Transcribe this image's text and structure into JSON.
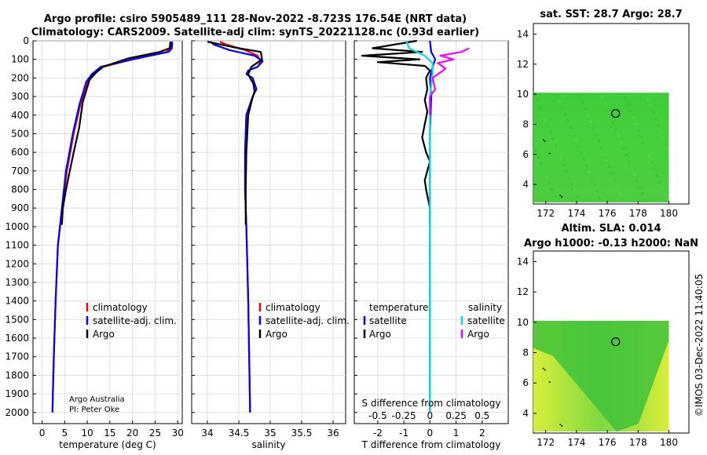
{
  "header": {
    "title_line1": "Argo profile: csiro 5905489_111 28-Nov-2022 -8.723S 176.54E (NRT data)",
    "title_line2": "Climatology: CARS2009. Satellite-adj clim: synTS_20221128.nc (0.93d earlier)"
  },
  "footer": {
    "credit_line1": "Argo Australia",
    "credit_line2": "PI: Peter Oke",
    "timestamp": "©IMOS 03-Dec-2022 11:40:05"
  },
  "colors": {
    "argo": "#000000",
    "climatology": "#ff0000",
    "satellite": "#0000ff",
    "sat_salinity": "#00e0e0",
    "argo_salinity": "#ff00ff"
  },
  "chart_data": [
    {
      "type": "line",
      "name": "temperature-profile",
      "xlabel": "temperature (deg C)",
      "ylabel": "",
      "xlim": [
        -2,
        31
      ],
      "ylim": [
        2060,
        0
      ],
      "xticks": [
        "0",
        "5",
        "10",
        "15",
        "20",
        "25",
        "30"
      ],
      "yticks": [
        "0",
        "100",
        "200",
        "300",
        "400",
        "500",
        "600",
        "700",
        "800",
        "900",
        "1000",
        "1100",
        "1200",
        "1300",
        "1400",
        "1500",
        "1600",
        "1700",
        "1800",
        "1900",
        "2000"
      ],
      "legend": [
        "climatology",
        "satellite-adj. clim.",
        "Argo"
      ],
      "series": [
        {
          "name": "climatology",
          "color": "#ff0000",
          "x": [
            28.6,
            28.5,
            27.5,
            20,
            13.5,
            11.5,
            10,
            8.5,
            7,
            5.5,
            4.5,
            3.5,
            3.0,
            2.6,
            2.4,
            2.3
          ],
          "y": [
            5,
            40,
            60,
            100,
            140,
            170,
            220,
            340,
            500,
            700,
            900,
            1100,
            1400,
            1700,
            1900,
            2000
          ]
        },
        {
          "name": "satellite-adj. clim.",
          "color": "#0000ff",
          "x": [
            28.8,
            28.7,
            28,
            20,
            13,
            11,
            9.8,
            8.3,
            6.8,
            5.3,
            4.4,
            3.5,
            3.0,
            2.6,
            2.4,
            2.3
          ],
          "y": [
            5,
            40,
            60,
            100,
            140,
            180,
            220,
            340,
            500,
            700,
            900,
            1100,
            1400,
            1700,
            1900,
            2000
          ]
        },
        {
          "name": "Argo",
          "color": "#000000",
          "x": [
            28.4,
            28.2,
            26,
            24,
            19,
            13.5,
            12,
            10.5,
            9,
            8.2,
            7,
            5.3,
            4.6,
            4.4
          ],
          "y": [
            5,
            40,
            60,
            70,
            95,
            140,
            170,
            210,
            330,
            470,
            600,
            800,
            900,
            990
          ]
        }
      ]
    },
    {
      "type": "line",
      "name": "salinity-profile",
      "xlabel": "salinity",
      "ylabel": "",
      "xlim": [
        33.75,
        36.2
      ],
      "ylim": [
        2060,
        0
      ],
      "xticks": [
        "34",
        "34.5",
        "35",
        "35.5",
        "36"
      ],
      "legend": [
        "climatology",
        "satellite-adj. clim.",
        "Argo"
      ],
      "series": [
        {
          "name": "climatology",
          "color": "#ff0000",
          "x": [
            34.2,
            34.3,
            34.6,
            34.8,
            34.85,
            34.8,
            34.65,
            34.63,
            34.72,
            34.78,
            34.72,
            34.62,
            34.6,
            34.6,
            34.62,
            34.65,
            34.67,
            34.68
          ],
          "y": [
            5,
            20,
            50,
            80,
            110,
            140,
            160,
            180,
            200,
            260,
            300,
            400,
            600,
            800,
            1000,
            1400,
            1800,
            2000
          ]
        },
        {
          "name": "satellite-adj. clim.",
          "color": "#0000ff",
          "x": [
            34.05,
            34.1,
            34.35,
            34.75,
            34.88,
            34.8,
            34.65,
            34.62,
            34.72,
            34.78,
            34.72,
            34.62,
            34.6,
            34.6,
            34.62,
            34.65,
            34.67,
            34.68
          ],
          "y": [
            5,
            20,
            50,
            80,
            110,
            140,
            160,
            180,
            200,
            260,
            300,
            400,
            600,
            800,
            1000,
            1400,
            1800,
            2000
          ]
        },
        {
          "name": "Argo",
          "color": "#000000",
          "x": [
            34.0,
            34.5,
            34.85,
            34.87,
            34.7,
            34.65,
            34.68,
            34.73,
            34.75,
            34.7,
            34.65,
            34.62,
            34.61,
            34.61
          ],
          "y": [
            5,
            40,
            60,
            100,
            140,
            180,
            200,
            230,
            270,
            330,
            400,
            600,
            800,
            990
          ]
        }
      ]
    },
    {
      "type": "line",
      "name": "difference-profile",
      "xlabel": "T difference from climatology",
      "xlabel_top": "S difference from climatology",
      "xlim": [
        -2.9,
        3.0
      ],
      "ylim": [
        2060,
        0
      ],
      "xticks": [
        "-2",
        "-1",
        "0",
        "1",
        "2"
      ],
      "xticks_top": [
        "-0.5",
        "-0.25",
        "0",
        "0.25",
        "0.5"
      ],
      "legend_titles": [
        "temperature",
        "salinity"
      ],
      "legend": [
        "satellite",
        "Argo",
        "satellite",
        "Argo"
      ],
      "series": [
        {
          "name": "temperature satellite",
          "color": "#0000ff",
          "x": [
            0,
            0.05,
            0.2,
            0.1,
            0,
            0.05,
            0,
            0,
            0,
            0
          ],
          "y": [
            0,
            60,
            100,
            140,
            200,
            300,
            500,
            1000,
            1500,
            2000
          ]
        },
        {
          "name": "temperature Argo",
          "color": "#000000",
          "x": [
            -0.5,
            -2.2,
            -0.3,
            -2.6,
            -0.4,
            -2.0,
            -0.2,
            0.0,
            -0.15,
            -0.1,
            -0.2,
            -0.1,
            -0.2,
            -0.3,
            -0.15,
            0.0,
            -0.1,
            -0.2,
            -0.15,
            0.0,
            0.0
          ],
          "y": [
            0,
            40,
            60,
            80,
            100,
            115,
            135,
            160,
            200,
            260,
            320,
            380,
            450,
            520,
            600,
            650,
            700,
            750,
            800,
            900,
            990
          ]
        },
        {
          "name": "salinity satellite",
          "color": "#00e0e0",
          "x": [
            -0.9,
            -0.8,
            -0.2,
            0.1,
            0.1,
            0.0,
            0.0,
            0.0,
            0.0,
            0.0,
            0.0,
            0.0
          ],
          "y": [
            0,
            40,
            80,
            120,
            180,
            300,
            600,
            900,
            1200,
            1500,
            1800,
            2000
          ]
        },
        {
          "name": "salinity Argo",
          "color": "#ff00ff",
          "x": [
            1.5,
            1.2,
            0.4,
            0.9,
            0.3,
            0.6,
            0.1,
            0.2,
            0.0,
            0.0
          ],
          "y": [
            40,
            60,
            80,
            100,
            120,
            150,
            200,
            260,
            300,
            400
          ]
        }
      ]
    },
    {
      "type": "heatmap",
      "name": "sat-sst-map",
      "title": "sat. SST: 28.7 Argo: 28.7",
      "xlim": [
        171.2,
        181.3
      ],
      "ylim": [
        2.7,
        14.7
      ],
      "xticks": [
        "172",
        "174",
        "176",
        "178",
        "180"
      ],
      "yticks": [
        "4",
        "6",
        "8",
        "10",
        "12",
        "14"
      ],
      "data_extent": {
        "lon": [
          171.2,
          180
        ],
        "lat": [
          2.8,
          10.1
        ]
      },
      "marker": {
        "lon": 176.54,
        "lat": 8.72
      }
    },
    {
      "type": "heatmap",
      "name": "altim-sla-map",
      "title_line1": "Altim. SLA: 0.014",
      "title_line2": "Argo h1000: -0.13 h2000: NaN",
      "xlim": [
        171.2,
        181.3
      ],
      "ylim": [
        2.7,
        14.7
      ],
      "xticks": [
        "172",
        "174",
        "176",
        "178",
        "180"
      ],
      "yticks": [
        "4",
        "6",
        "8",
        "10",
        "12",
        "14"
      ],
      "data_extent": {
        "lon": [
          171.2,
          180
        ],
        "lat": [
          2.8,
          10.1
        ]
      },
      "marker": {
        "lon": 176.54,
        "lat": 8.72
      }
    }
  ]
}
